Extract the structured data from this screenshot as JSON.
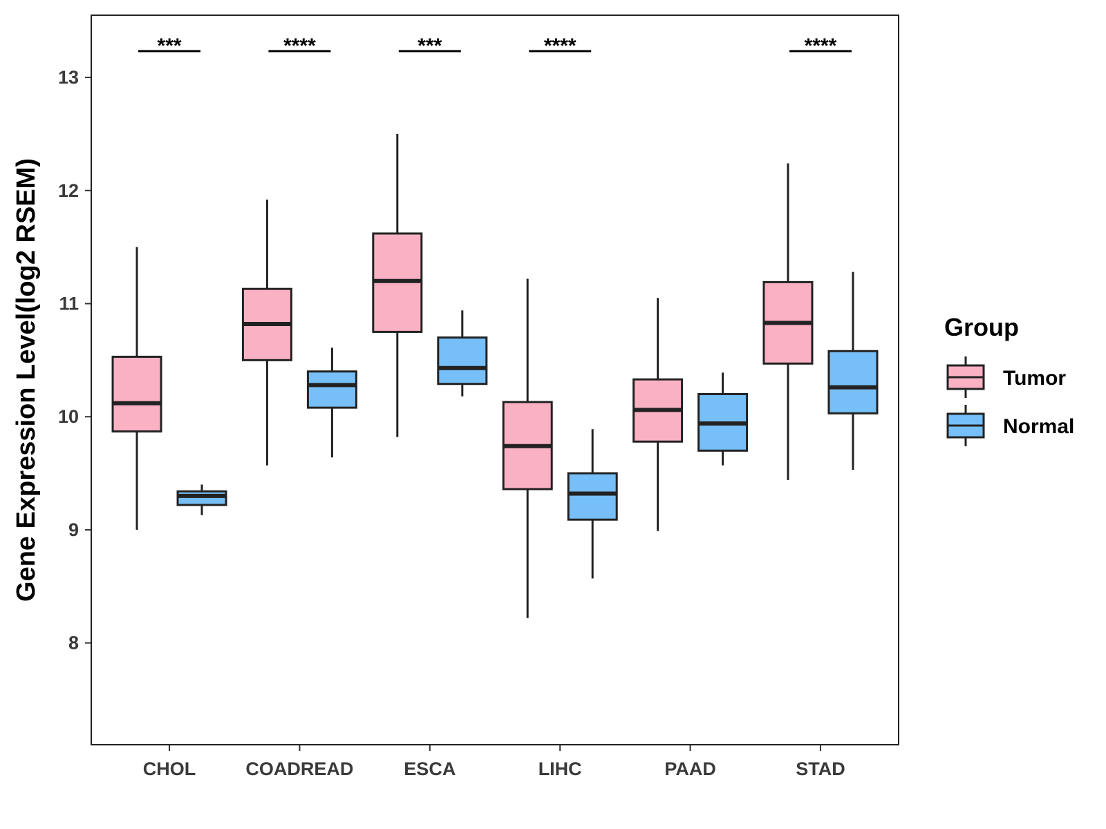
{
  "chart_data": {
    "type": "boxplot",
    "title": "",
    "xlabel": "",
    "ylabel": "Gene Expression Level(log2 RSEM)",
    "ylim": [
      7.1,
      13.55
    ],
    "yticks": [
      8,
      9,
      10,
      11,
      12,
      13
    ],
    "categories": [
      "CHOL",
      "COADREAD",
      "ESCA",
      "LIHC",
      "PAAD",
      "STAD"
    ],
    "legend": {
      "title": "Group",
      "position": "right"
    },
    "series": [
      {
        "name": "Tumor",
        "color": "#fbb1c4",
        "boxes": [
          {
            "category": "CHOL",
            "min": 9.0,
            "q1": 9.87,
            "median": 10.12,
            "q3": 10.53,
            "max": 11.5
          },
          {
            "category": "COADREAD",
            "min": 9.57,
            "q1": 10.5,
            "median": 10.82,
            "q3": 11.13,
            "max": 11.92
          },
          {
            "category": "ESCA",
            "min": 9.82,
            "q1": 10.75,
            "median": 11.2,
            "q3": 11.62,
            "max": 12.5
          },
          {
            "category": "LIHC",
            "min": 8.22,
            "q1": 9.36,
            "median": 9.74,
            "q3": 10.13,
            "max": 11.22
          },
          {
            "category": "PAAD",
            "min": 8.99,
            "q1": 9.78,
            "median": 10.06,
            "q3": 10.33,
            "max": 11.05
          },
          {
            "category": "STAD",
            "min": 9.44,
            "q1": 10.47,
            "median": 10.83,
            "q3": 11.19,
            "max": 12.24
          }
        ]
      },
      {
        "name": "Normal",
        "color": "#76bff8",
        "boxes": [
          {
            "category": "CHOL",
            "min": 9.13,
            "q1": 9.22,
            "median": 9.3,
            "q3": 9.34,
            "max": 9.4
          },
          {
            "category": "COADREAD",
            "min": 9.64,
            "q1": 10.08,
            "median": 10.28,
            "q3": 10.4,
            "max": 10.61
          },
          {
            "category": "ESCA",
            "min": 10.18,
            "q1": 10.29,
            "median": 10.43,
            "q3": 10.7,
            "max": 10.94
          },
          {
            "category": "LIHC",
            "min": 8.57,
            "q1": 9.09,
            "median": 9.32,
            "q3": 9.5,
            "max": 9.89
          },
          {
            "category": "PAAD",
            "min": 9.57,
            "q1": 9.7,
            "median": 9.94,
            "q3": 10.2,
            "max": 10.39
          },
          {
            "category": "STAD",
            "min": 9.53,
            "q1": 10.03,
            "median": 10.26,
            "q3": 10.58,
            "max": 11.28
          }
        ]
      }
    ],
    "significance": [
      {
        "category": "CHOL",
        "label": "***"
      },
      {
        "category": "COADREAD",
        "label": "****"
      },
      {
        "category": "ESCA",
        "label": "***"
      },
      {
        "category": "LIHC",
        "label": "****"
      },
      {
        "category": "STAD",
        "label": "****"
      }
    ]
  }
}
